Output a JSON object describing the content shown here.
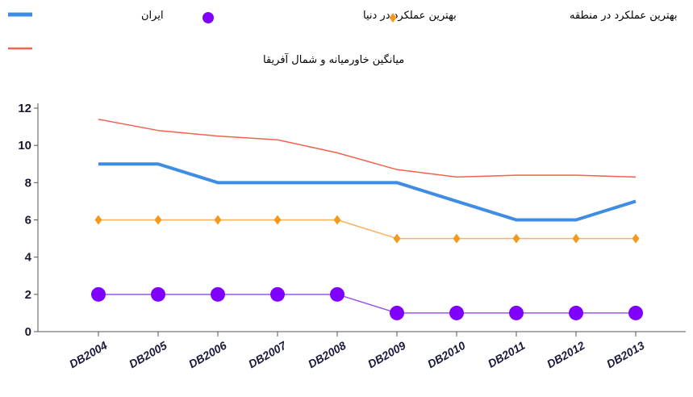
{
  "chart_data": {
    "type": "line",
    "categories": [
      "DB2004",
      "DB2005",
      "DB2006",
      "DB2007",
      "DB2008",
      "DB2009",
      "DB2010",
      "DB2011",
      "DB2012",
      "DB2013"
    ],
    "series": [
      {
        "name": "ایران",
        "color": "#3f8ce3",
        "width": 4,
        "marker": null,
        "values": [
          9,
          9,
          8,
          8,
          8,
          8,
          7,
          6,
          6,
          7
        ]
      },
      {
        "name": "بهترین عملکرد در دنیا",
        "color": "#9a55e8",
        "marker_color": "#7f00ff",
        "width": 1.5,
        "marker": "circle",
        "values": [
          2,
          2,
          2,
          2,
          2,
          1,
          1,
          1,
          1,
          1
        ]
      },
      {
        "name": "بهترین عملکرد در منطقه",
        "color": "#f8b35a",
        "marker_color": "#f39a1e",
        "width": 1.5,
        "marker": "diamond",
        "values": [
          6,
          6,
          6,
          6,
          6,
          5,
          5,
          5,
          5,
          5
        ]
      },
      {
        "name": "میانگین خاورمیانه و شمال آفریقا",
        "color": "#f2624e",
        "width": 1.5,
        "marker": null,
        "values": [
          11.4,
          10.8,
          10.5,
          10.3,
          9.6,
          8.7,
          8.3,
          8.4,
          8.4,
          8.3
        ]
      }
    ],
    "ylim": [
      0,
      12
    ],
    "yticks": [
      0,
      2,
      4,
      6,
      8,
      10,
      12
    ]
  }
}
